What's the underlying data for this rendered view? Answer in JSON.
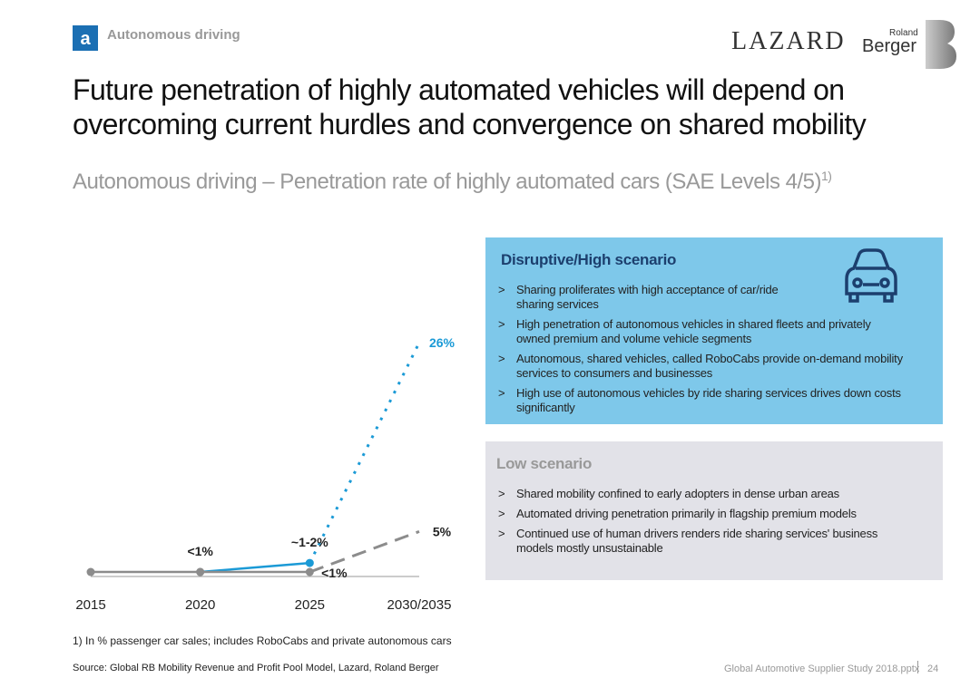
{
  "header": {
    "section": "Autonomous driving",
    "logo_lazard": "LAZARD",
    "logo_roland": "Roland",
    "logo_berger": "Berger"
  },
  "title_lines": [
    "Future penetration of highly automated vehicles will depend on",
    "overcoming current hurdles and convergence on shared mobility"
  ],
  "subtitle": "Autonomous driving – Penetration rate of highly automated cars (SAE Levels 4/5)",
  "subtitle_note": "1)",
  "chart_data": {
    "type": "line",
    "categories": [
      "2015",
      "2020",
      "2025",
      "2030/2035"
    ],
    "series": [
      {
        "name": "Disruptive/High scenario",
        "color": "#1b9ad6",
        "projected_style": "dotted",
        "values": [
          null,
          0.5,
          1.5,
          26
        ],
        "value_labels": [
          null,
          "<1%",
          "~1-2%",
          "26%"
        ]
      },
      {
        "name": "Low scenario",
        "color": "#8c8c8c",
        "projected_style": "dashed",
        "values": [
          0.5,
          0.5,
          0.5,
          5
        ],
        "value_labels": [
          null,
          null,
          "<1%",
          "5%"
        ]
      }
    ]
  },
  "high_bullets": [
    "Sharing proliferates with high acceptance of car/ride sharing services",
    "High penetration of autonomous vehicles in shared fleets and privately owned premium and volume vehicle segments",
    "Autonomous, shared vehicles, called RoboCabs provide on-demand mobility services to consumers and businesses",
    "High use of autonomous vehicles by ride sharing services drives down costs significantly"
  ],
  "low_bullets": [
    "Shared mobility confined to early adopters in dense urban areas",
    "Automated driving penetration primarily in flagship premium models",
    "Continued use of human drivers renders ride sharing services' business models mostly unsustainable"
  ],
  "bullet_marker": ">",
  "footnote": "1) In % passenger car sales; includes RoboCabs and private autonomous cars",
  "source": "Source: Global RB Mobility Revenue and Profit Pool Model, Lazard, Roland Berger",
  "footer": {
    "file": "Global Automotive Supplier Study 2018.pptx",
    "page": "24"
  }
}
